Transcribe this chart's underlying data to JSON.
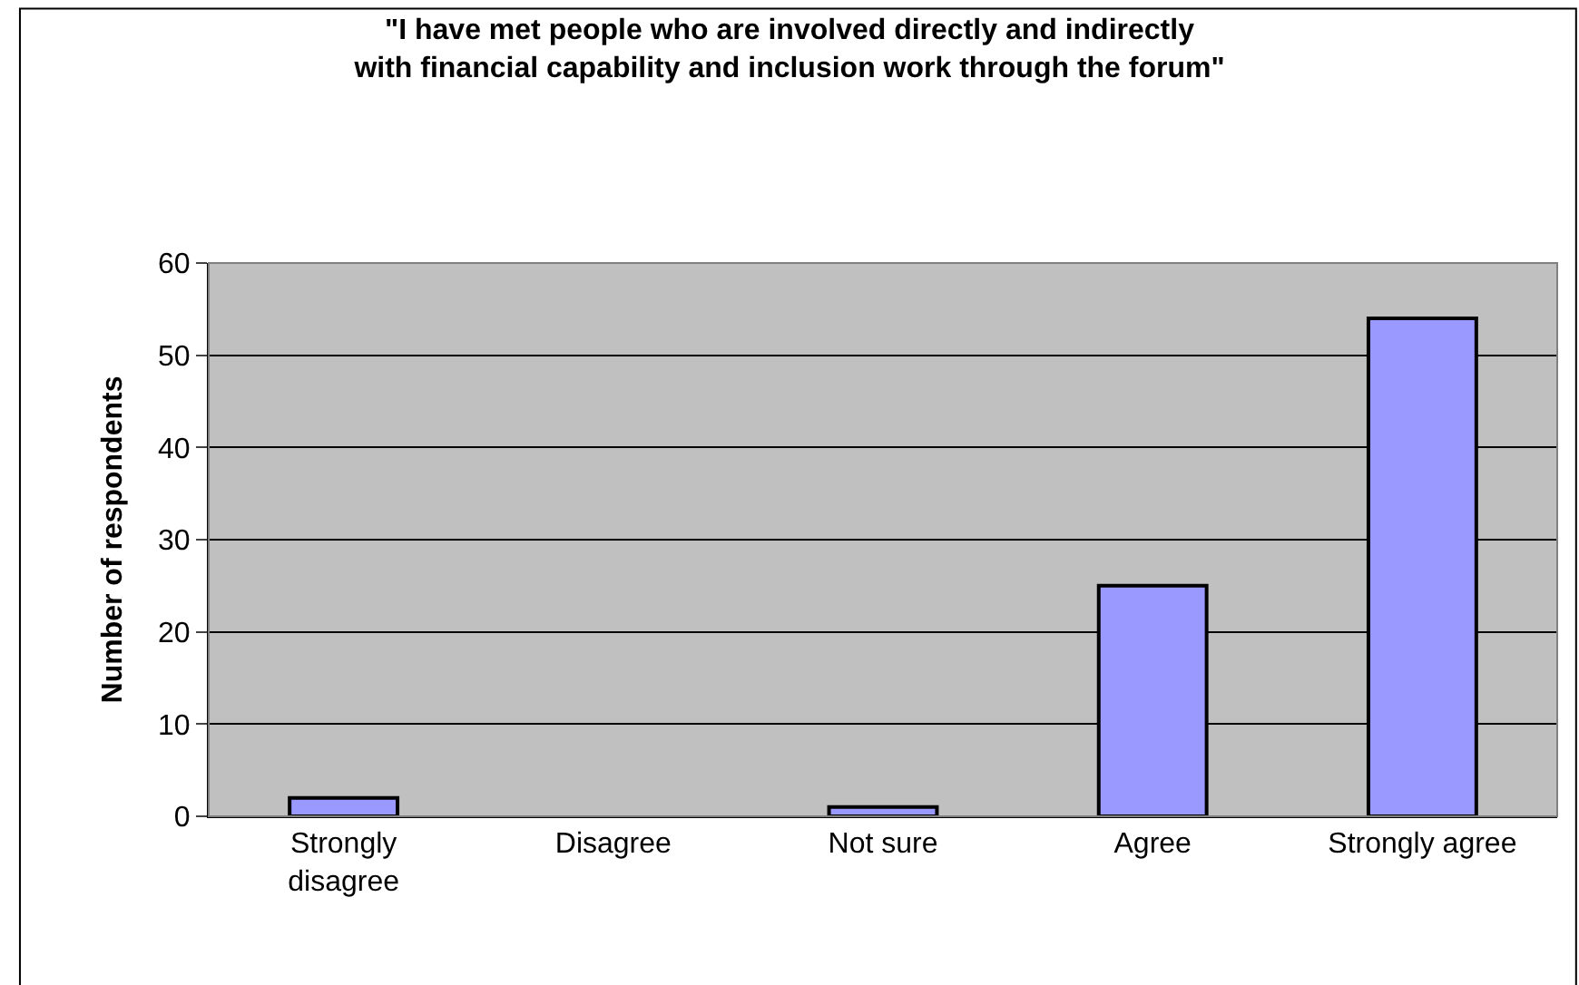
{
  "chart_data": {
    "type": "bar",
    "title": "\"I have met people who are involved directly and indirectly with financial capability and inclusion work through the forum\"",
    "ylabel": "Number of respondents",
    "categories": [
      "Strongly disagree",
      "Disagree",
      "Not sure",
      "Agree",
      "Strongly agree"
    ],
    "values": [
      2,
      0,
      1,
      25,
      54
    ],
    "color": "#9999ff",
    "ylim": [
      0,
      60
    ],
    "yticks": [
      0,
      10,
      20,
      30,
      40,
      50,
      60
    ],
    "grid": "y"
  }
}
